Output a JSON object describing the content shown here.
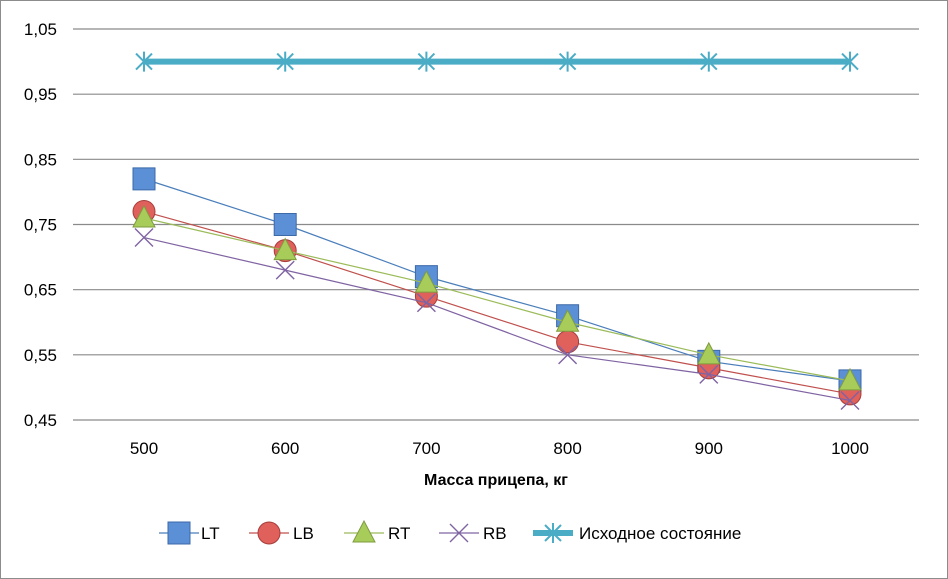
{
  "chart_data": {
    "type": "line",
    "title": "",
    "xlabel": "Масса прицепа, кг",
    "ylabel": "",
    "categories": [
      "500",
      "600",
      "700",
      "800",
      "900",
      "1000"
    ],
    "ylim": [
      0.45,
      1.05
    ],
    "yticks": [
      "0,45",
      "0,55",
      "0,65",
      "0,75",
      "0,85",
      "0,95",
      "1,05"
    ],
    "ytick_values": [
      0.45,
      0.55,
      0.65,
      0.75,
      0.85,
      0.95,
      1.05
    ],
    "grid": true,
    "legend_position": "bottom",
    "series": [
      {
        "name": "LT",
        "values": [
          0.82,
          0.75,
          0.67,
          0.61,
          0.54,
          0.51
        ],
        "color": "#4a7ebb",
        "marker_fill": "#5b8fd6",
        "marker": "square"
      },
      {
        "name": "LB",
        "values": [
          0.77,
          0.71,
          0.64,
          0.57,
          0.53,
          0.49
        ],
        "color": "#c0504d",
        "marker_fill": "#e0605c",
        "marker": "circle"
      },
      {
        "name": "RT",
        "values": [
          0.76,
          0.71,
          0.66,
          0.6,
          0.55,
          0.51
        ],
        "color": "#9bbb59",
        "marker_fill": "#a8cc5a",
        "marker": "triangle"
      },
      {
        "name": "RB",
        "values": [
          0.73,
          0.68,
          0.63,
          0.55,
          0.52,
          0.48
        ],
        "color": "#7f63a2",
        "marker_fill": "#7f63a2",
        "marker": "x"
      },
      {
        "name": "Исходное состояние",
        "values": [
          1.0,
          1.0,
          1.0,
          1.0,
          1.0,
          1.0
        ],
        "color": "#4bacc6",
        "marker_fill": "#4bacc6",
        "marker": "star"
      }
    ]
  }
}
